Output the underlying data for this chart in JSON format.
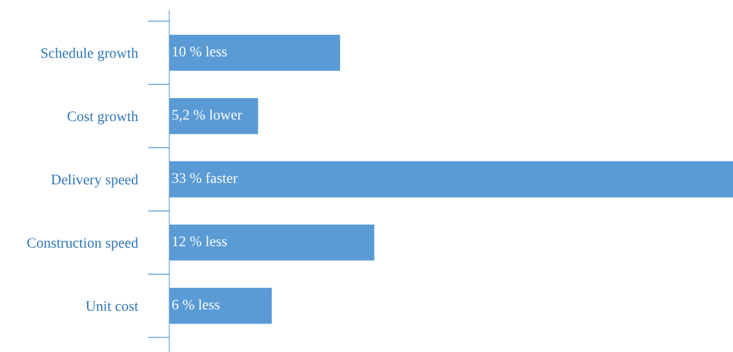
{
  "chart_data": {
    "type": "bar",
    "orientation": "horizontal",
    "tick_labels": "y",
    "categories": [
      "Schedule growth",
      "Cost growth",
      "Delivery speed",
      "Construction speed",
      "Unit cost"
    ],
    "values": [
      10,
      5.2,
      33,
      12,
      6
    ],
    "value_labels": [
      "10 % less",
      "5,2 % lower",
      "33 % faster",
      "12 % less",
      "6 % less"
    ],
    "color": "#5b9bd5",
    "grid": false,
    "legend": false
  }
}
